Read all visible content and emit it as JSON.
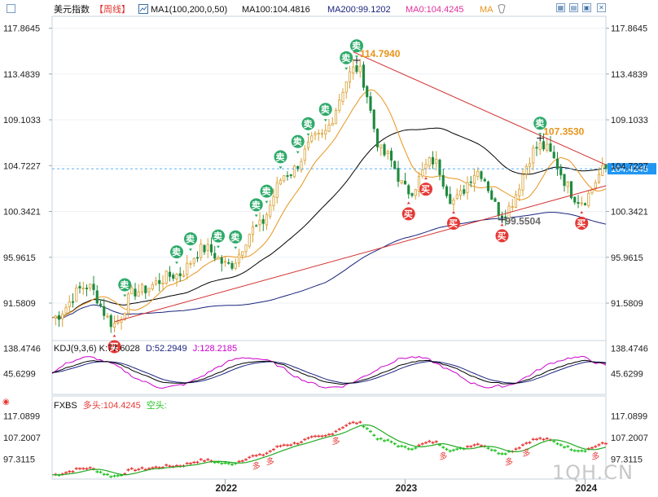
{
  "header": {
    "title": "美元指数",
    "period": "【周线】",
    "ma_group_label": "MA1(100,200,0,50)",
    "ma100_label": "MA100:104.4816",
    "ma200_label": "MA200:99.1202",
    "ma0_label": "MA0:104.4245",
    "ma_label": "MA"
  },
  "colors": {
    "up": "#d9a032",
    "down": "#1f8a3e",
    "ma100": "#000000",
    "ma200": "#1a237e",
    "ma50": "#e8941a",
    "trend": "#d32f2f",
    "price_line": "#2196f3",
    "sell_badge": "#2eaa6a",
    "buy_badge": "#e53935",
    "kdj_k": "#000000",
    "kdj_d": "#1a237e",
    "kdj_j": "#cc00cc",
    "fxbs_long": "#e53935",
    "fxbs_short": "#22c322",
    "fxbs_line": "#22aa22"
  },
  "chart_data": [
    {
      "type": "candlestick",
      "title": "美元指数【周线】",
      "y_ticks": [
        "117.8645",
        "113.4839",
        "109.1033",
        "104.7227",
        "100.3421",
        "95.9615",
        "91.5809"
      ],
      "ylim": [
        88.0,
        119.0
      ],
      "x_ticks": [
        "2022",
        "2023",
        "2024"
      ],
      "current_price": "104.4245",
      "annotations": [
        {
          "text": "114.7940",
          "x": "2022-09-26",
          "y": 114.794
        },
        {
          "text": "107.3530",
          "x": "2023-10-02",
          "y": 107.353
        },
        {
          "text": "99.5504",
          "x": "2023-07-17",
          "y": 99.5504
        }
      ],
      "series": [
        {
          "name": "MA100",
          "last": 104.4816
        },
        {
          "name": "MA200",
          "last": 99.1202
        },
        {
          "name": "MA0",
          "last": 104.4245
        }
      ],
      "signals": {
        "sell_label": "卖",
        "buy_label": "买",
        "sell_dates": [
          "2021-06-14",
          "2021-09-27",
          "2021-10-25",
          "2021-12-20",
          "2022-01-24",
          "2022-03-07",
          "2022-03-28",
          "2022-04-25",
          "2022-05-30",
          "2022-06-20",
          "2022-07-25",
          "2022-09-05",
          "2022-09-26",
          "2023-10-02"
        ],
        "buy_dates": [
          "2021-05-24",
          "2023-01-09",
          "2023-02-13",
          "2023-04-10",
          "2023-07-17",
          "2023-12-25"
        ]
      }
    },
    {
      "type": "line",
      "title": "KDJ(9,3,6)",
      "k_label": "K:77.6028",
      "d_label": "D:52.2949",
      "j_label": "J:128.2185",
      "y_ticks": [
        "138.4746",
        "45.6299"
      ]
    },
    {
      "type": "line",
      "title": "FXBS",
      "long_label": "多头:104.4245",
      "short_label": "空头:",
      "y_ticks": [
        "117.0899",
        "107.2007",
        "97.3115"
      ],
      "marker_label": "多"
    }
  ],
  "watermark": "1QH.CN"
}
